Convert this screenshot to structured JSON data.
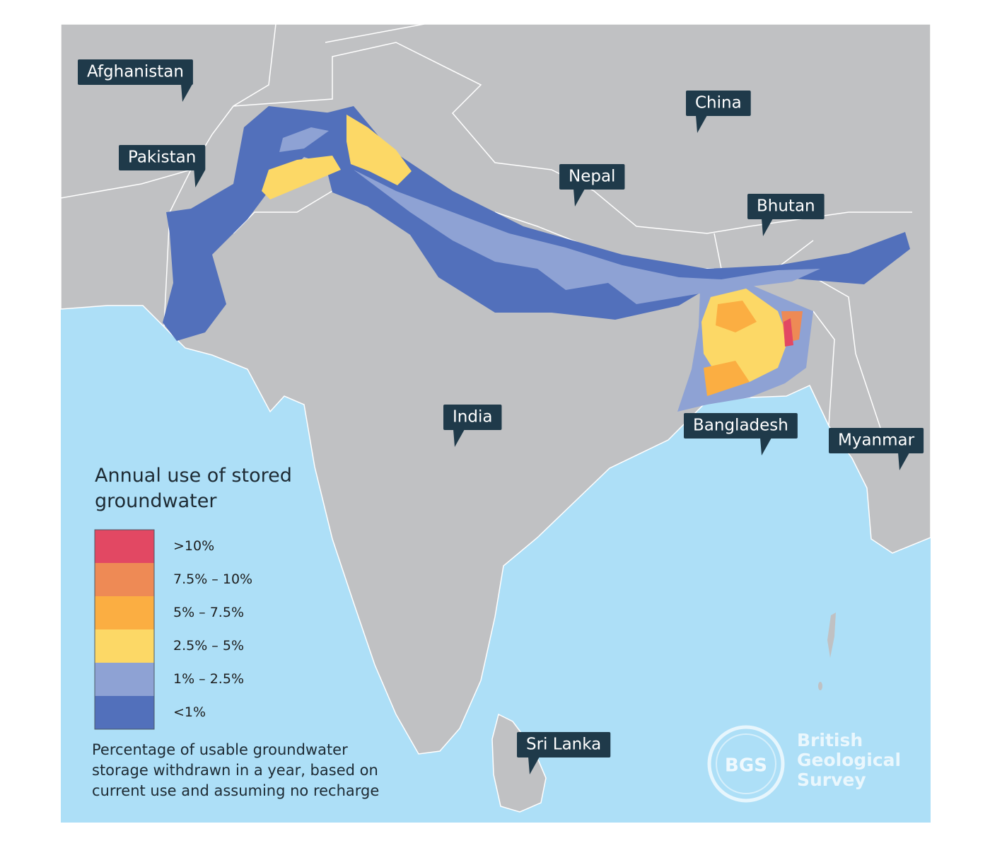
{
  "map": {
    "labels": [
      "Afghanistan",
      "China",
      "Pakistan",
      "Nepal",
      "Bhutan",
      "India",
      "Bangladesh",
      "Myanmar",
      "Sri Lanka"
    ],
    "legend": {
      "title": "Annual use of stored groundwater",
      "items": [
        {
          "label": ">10%",
          "color": "#e24863"
        },
        {
          "label": "7.5% – 10%",
          "color": "#ee8a55"
        },
        {
          "label": "5% – 7.5%",
          "color": "#fbae42"
        },
        {
          "label": "2.5% – 5%",
          "color": "#fcd866"
        },
        {
          "label": "1% – 2.5%",
          "color": "#8ea2d4"
        },
        {
          "label": "<1%",
          "color": "#5270bb"
        }
      ],
      "note": "Percentage of usable groundwater storage withdrawn in a year, based on current use and assuming no recharge"
    },
    "logo": {
      "mark": "BGS",
      "name": "British Geological Survey"
    }
  }
}
